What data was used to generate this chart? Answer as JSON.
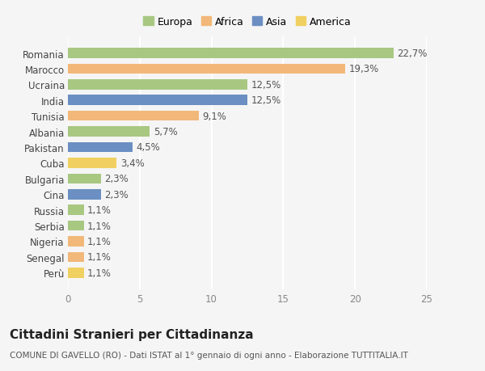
{
  "countries": [
    "Romania",
    "Marocco",
    "Ucraina",
    "India",
    "Tunisia",
    "Albania",
    "Pakistan",
    "Cuba",
    "Bulgaria",
    "Cina",
    "Russia",
    "Serbia",
    "Nigeria",
    "Senegal",
    "Perù"
  ],
  "values": [
    22.7,
    19.3,
    12.5,
    12.5,
    9.1,
    5.7,
    4.5,
    3.4,
    2.3,
    2.3,
    1.1,
    1.1,
    1.1,
    1.1,
    1.1
  ],
  "labels": [
    "22,7%",
    "19,3%",
    "12,5%",
    "12,5%",
    "9,1%",
    "5,7%",
    "4,5%",
    "3,4%",
    "2,3%",
    "2,3%",
    "1,1%",
    "1,1%",
    "1,1%",
    "1,1%",
    "1,1%"
  ],
  "regions": [
    "Europa",
    "Africa",
    "Europa",
    "Asia",
    "Africa",
    "Europa",
    "Asia",
    "America",
    "Europa",
    "Asia",
    "Europa",
    "Europa",
    "Africa",
    "Africa",
    "America"
  ],
  "colors": {
    "Europa": "#a8c882",
    "Africa": "#f2b87a",
    "Asia": "#6b8fc2",
    "America": "#f0d060"
  },
  "legend_order": [
    "Europa",
    "Africa",
    "Asia",
    "America"
  ],
  "xlim": [
    0,
    25
  ],
  "xticks": [
    0,
    5,
    10,
    15,
    20,
    25
  ],
  "title": "Cittadini Stranieri per Cittadinanza",
  "subtitle": "COMUNE DI GAVELLO (RO) - Dati ISTAT al 1° gennaio di ogni anno - Elaborazione TUTTITALIA.IT",
  "background_color": "#f5f5f5",
  "bar_height": 0.65,
  "grid_color": "#ffffff",
  "label_fontsize": 8.5,
  "tick_fontsize": 8.5,
  "title_fontsize": 11,
  "subtitle_fontsize": 7.5,
  "legend_fontsize": 9
}
